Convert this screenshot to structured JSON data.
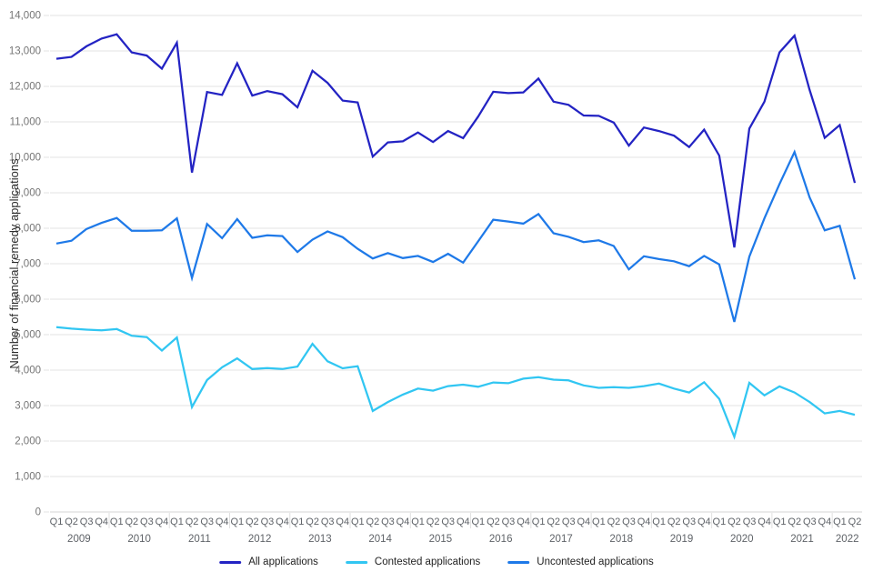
{
  "chart": {
    "y_axis": {
      "title": "Number of financial remedy applications",
      "tick_values": [
        0,
        1000,
        2000,
        3000,
        4000,
        5000,
        6000,
        7000,
        8000,
        9000,
        10000,
        11000,
        12000,
        13000,
        14000
      ],
      "tick_labels": [
        "0",
        "1,000",
        "2,000",
        "3,000",
        "4,000",
        "5,000",
        "6,000",
        "7,000",
        "8,000",
        "9,000",
        "10,000",
        "11,000",
        "12,000",
        "13,000",
        "14,000"
      ]
    },
    "x_axis": {
      "years": [
        {
          "label": "2009",
          "quarters": [
            "Q1",
            "Q2",
            "Q3",
            "Q4"
          ]
        },
        {
          "label": "2010",
          "quarters": [
            "Q1",
            "Q2",
            "Q3",
            "Q4"
          ]
        },
        {
          "label": "2011",
          "quarters": [
            "Q1",
            "Q2",
            "Q3",
            "Q4"
          ]
        },
        {
          "label": "2012",
          "quarters": [
            "Q1",
            "Q2",
            "Q3",
            "Q4"
          ]
        },
        {
          "label": "2013",
          "quarters": [
            "Q1",
            "Q2",
            "Q3",
            "Q4"
          ]
        },
        {
          "label": "2014",
          "quarters": [
            "Q1",
            "Q2",
            "Q3",
            "Q4"
          ]
        },
        {
          "label": "2015",
          "quarters": [
            "Q1",
            "Q2",
            "Q3",
            "Q4"
          ]
        },
        {
          "label": "2016",
          "quarters": [
            "Q1",
            "Q2",
            "Q3",
            "Q4"
          ]
        },
        {
          "label": "2017",
          "quarters": [
            "Q1",
            "Q2",
            "Q3",
            "Q4"
          ]
        },
        {
          "label": "2018",
          "quarters": [
            "Q1",
            "Q2",
            "Q3",
            "Q4"
          ]
        },
        {
          "label": "2019",
          "quarters": [
            "Q1",
            "Q2",
            "Q3",
            "Q4"
          ]
        },
        {
          "label": "2020",
          "quarters": [
            "Q1",
            "Q2",
            "Q3",
            "Q4"
          ]
        },
        {
          "label": "2021",
          "quarters": [
            "Q1",
            "Q2",
            "Q3",
            "Q4"
          ]
        },
        {
          "label": "2022",
          "quarters": [
            "Q1",
            "Q2"
          ]
        }
      ]
    },
    "legend": [
      {
        "label": "All applications",
        "color": "#2323c3"
      },
      {
        "label": "Contested applications",
        "color": "#31c6f2"
      },
      {
        "label": "Uncontested applications",
        "color": "#1e79e8"
      }
    ],
    "colors": {
      "gridline": "#e3e3e3",
      "baseline": "#d6d6d6",
      "tick_label": "#757575",
      "x_label": "#5f6368",
      "separator": "#e0e0e0"
    }
  },
  "chart_data": {
    "type": "line",
    "title": "",
    "ylabel": "Number of financial remedy applications",
    "xlabel": "",
    "ylim": [
      0,
      14000
    ],
    "grid": true,
    "legend_position": "bottom",
    "x": [
      "2009 Q1",
      "2009 Q2",
      "2009 Q3",
      "2009 Q4",
      "2010 Q1",
      "2010 Q2",
      "2010 Q3",
      "2010 Q4",
      "2011 Q1",
      "2011 Q2",
      "2011 Q3",
      "2011 Q4",
      "2012 Q1",
      "2012 Q2",
      "2012 Q3",
      "2012 Q4",
      "2013 Q1",
      "2013 Q2",
      "2013 Q3",
      "2013 Q4",
      "2014 Q1",
      "2014 Q2",
      "2014 Q3",
      "2014 Q4",
      "2015 Q1",
      "2015 Q2",
      "2015 Q3",
      "2015 Q4",
      "2016 Q1",
      "2016 Q2",
      "2016 Q3",
      "2016 Q4",
      "2017 Q1",
      "2017 Q2",
      "2017 Q3",
      "2017 Q4",
      "2018 Q1",
      "2018 Q2",
      "2018 Q3",
      "2018 Q4",
      "2019 Q1",
      "2019 Q2",
      "2019 Q3",
      "2019 Q4",
      "2020 Q1",
      "2020 Q2",
      "2020 Q3",
      "2020 Q4",
      "2021 Q1",
      "2021 Q2",
      "2021 Q3",
      "2021 Q4",
      "2022 Q1",
      "2022 Q2"
    ],
    "series": [
      {
        "name": "All applications",
        "color": "#2323c3",
        "values": [
          12780,
          12830,
          13130,
          13350,
          13470,
          12960,
          12870,
          12500,
          13230,
          9570,
          11840,
          11760,
          12650,
          11740,
          11870,
          11780,
          11410,
          12440,
          12100,
          11600,
          11550,
          10020,
          10420,
          10450,
          10700,
          10430,
          10740,
          10540,
          11150,
          11850,
          11810,
          11830,
          12220,
          11570,
          11480,
          11180,
          11170,
          10980,
          10330,
          10840,
          10740,
          10610,
          10290,
          10780,
          10050,
          7460,
          10810,
          11570,
          12960,
          13430,
          11900,
          10550,
          10910,
          9280
        ]
      },
      {
        "name": "Contested applications",
        "color": "#31c6f2",
        "values": [
          5210,
          5170,
          5140,
          5120,
          5160,
          4970,
          4930,
          4550,
          4920,
          2960,
          3720,
          4080,
          4330,
          4030,
          4060,
          4030,
          4100,
          4740,
          4250,
          4050,
          4110,
          2850,
          3100,
          3310,
          3480,
          3420,
          3550,
          3590,
          3530,
          3650,
          3630,
          3760,
          3800,
          3730,
          3710,
          3570,
          3500,
          3520,
          3500,
          3550,
          3620,
          3480,
          3370,
          3660,
          3190,
          2120,
          3640,
          3290,
          3540,
          3370,
          3100,
          2780,
          2850,
          2740
        ]
      },
      {
        "name": "Uncontested applications",
        "color": "#1e79e8",
        "values": [
          7570,
          7650,
          7980,
          8150,
          8290,
          7930,
          7930,
          7940,
          8280,
          6600,
          8120,
          7720,
          8260,
          7730,
          7800,
          7780,
          7330,
          7680,
          7910,
          7750,
          7420,
          7150,
          7300,
          7160,
          7220,
          7050,
          7280,
          7030,
          7630,
          8240,
          8190,
          8130,
          8400,
          7860,
          7760,
          7610,
          7660,
          7500,
          6840,
          7210,
          7130,
          7070,
          6930,
          7220,
          6980,
          5360,
          7200,
          8280,
          9250,
          10150,
          8870,
          7940,
          8070,
          6560
        ]
      }
    ]
  }
}
